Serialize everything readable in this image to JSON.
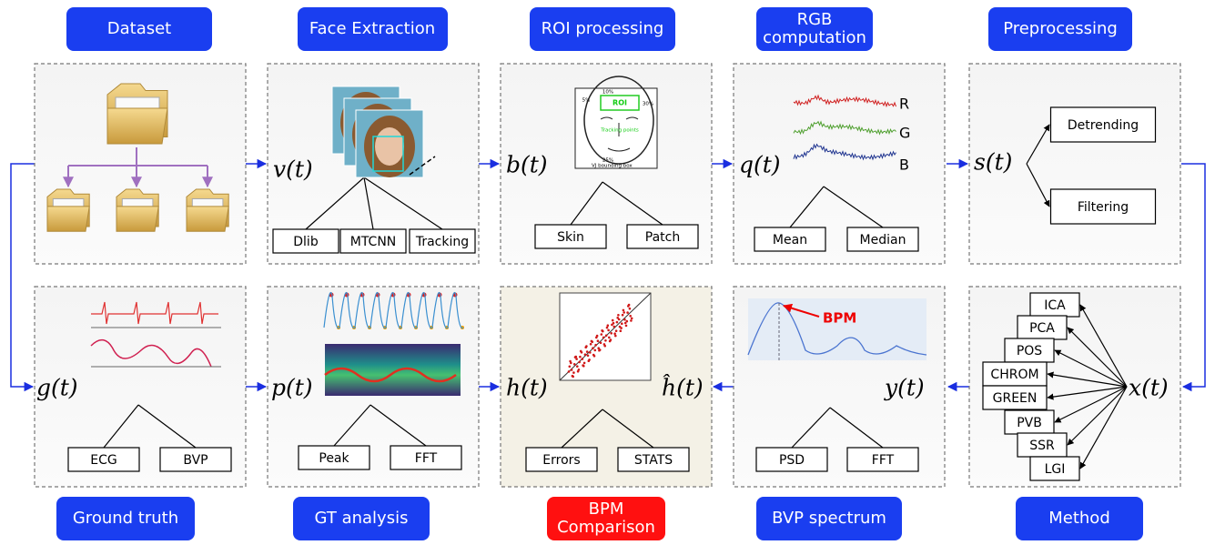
{
  "top_row": [
    {
      "title": "Dataset"
    },
    {
      "title": "Face Extraction",
      "variable": "v(t)",
      "options": [
        "Dlib",
        "MTCNN",
        "Tracking"
      ]
    },
    {
      "title": "ROI processing",
      "variable": "b(t)",
      "options": [
        "Skin",
        "Patch"
      ],
      "face_labels": [
        "10%",
        "5%",
        "ROI",
        "30%",
        "Tracking points",
        "25%",
        "VJ bounding box"
      ]
    },
    {
      "title": "RGB computation",
      "variable": "q(t)",
      "options": [
        "Mean",
        "Median"
      ],
      "channels": [
        "R",
        "G",
        "B"
      ]
    },
    {
      "title": "Preprocessing",
      "variable": "s(t)",
      "options": [
        "Detrending",
        "Filtering"
      ]
    }
  ],
  "bottom_row": [
    {
      "title": "Ground truth",
      "variable": "g(t)",
      "options": [
        "ECG",
        "BVP"
      ]
    },
    {
      "title": "GT analysis",
      "variable": "p(t)",
      "options": [
        "Peak",
        "FFT"
      ]
    },
    {
      "title": "BPM Comparison",
      "variables": [
        "h(t)",
        "ĥ(t)"
      ],
      "options": [
        "Errors",
        "STATS"
      ]
    },
    {
      "title": "BVP spectrum",
      "variable": "y(t)",
      "options": [
        "PSD",
        "FFT"
      ],
      "annotation": "BPM"
    },
    {
      "title": "Method",
      "variable": "x(t)",
      "methods": [
        "ICA",
        "PCA",
        "POS",
        "CHROM",
        "GREEN",
        "PVB",
        "SSR",
        "LGI"
      ]
    }
  ]
}
